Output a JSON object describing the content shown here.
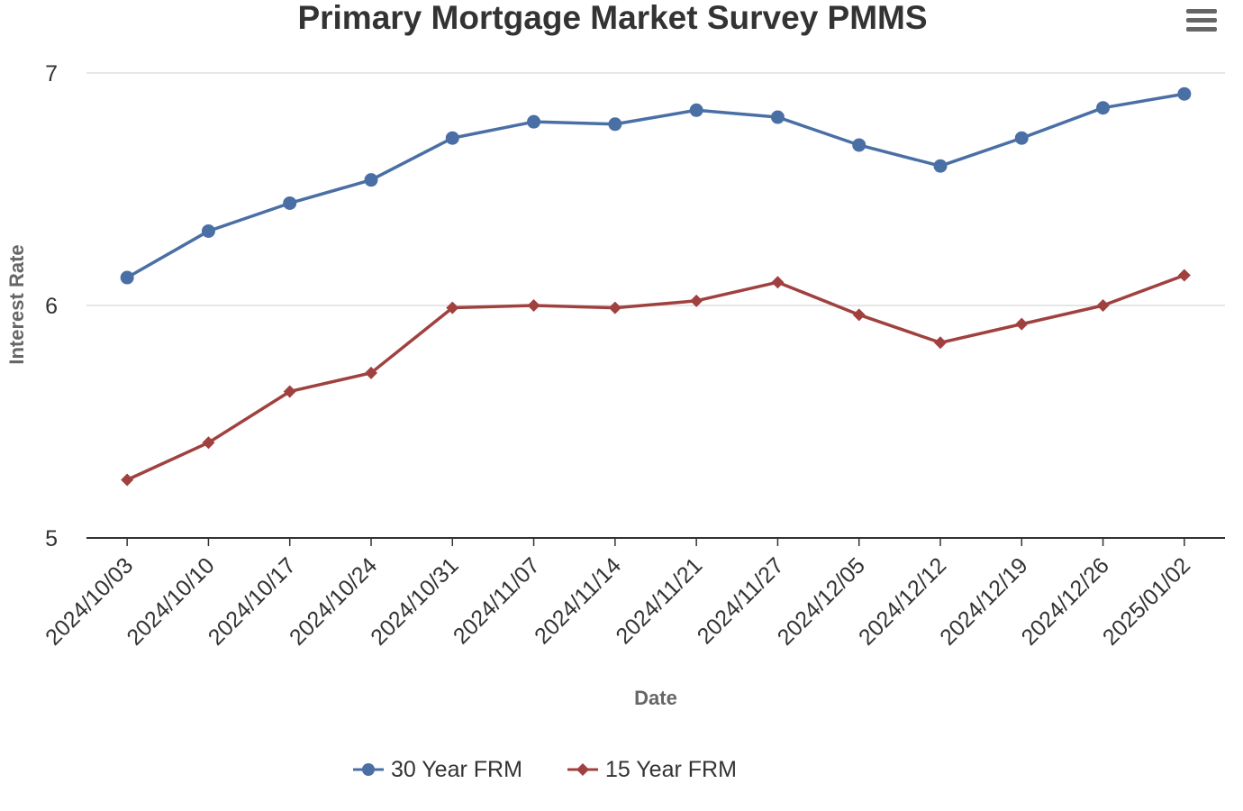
{
  "title": "Primary Mortgage Market Survey PMMS",
  "menu": {
    "icon": "hamburger-menu-icon"
  },
  "chart_data": {
    "type": "line",
    "title": "Primary Mortgage Market Survey PMMS",
    "xlabel": "Date",
    "ylabel": "Interest Rate",
    "ylim": [
      5,
      7
    ],
    "yticks": [
      5,
      6,
      7
    ],
    "grid": true,
    "legend_position": "bottom-center",
    "categories": [
      "2024/10/03",
      "2024/10/10",
      "2024/10/17",
      "2024/10/24",
      "2024/10/31",
      "2024/11/07",
      "2024/11/14",
      "2024/11/21",
      "2024/11/27",
      "2024/12/05",
      "2024/12/12",
      "2024/12/19",
      "2024/12/26",
      "2025/01/02"
    ],
    "series": [
      {
        "name": "30 Year FRM",
        "color": "#4a6fa5",
        "marker": "circle",
        "values": [
          6.12,
          6.32,
          6.44,
          6.54,
          6.72,
          6.79,
          6.78,
          6.84,
          6.81,
          6.69,
          6.6,
          6.72,
          6.85,
          6.91
        ]
      },
      {
        "name": "15 Year FRM",
        "color": "#a0413f",
        "marker": "diamond",
        "values": [
          5.25,
          5.41,
          5.63,
          5.71,
          5.99,
          6.0,
          5.99,
          6.02,
          6.1,
          5.96,
          5.84,
          5.92,
          6.0,
          6.13
        ]
      }
    ]
  }
}
